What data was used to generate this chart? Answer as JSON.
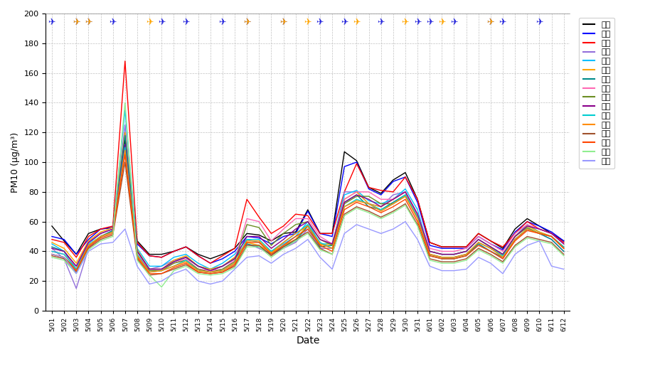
{
  "ylabel": "PM10 (ug/m³)",
  "xlabel": "Date",
  "ylim": [
    0,
    200
  ],
  "yticks": [
    0,
    20,
    40,
    60,
    80,
    100,
    120,
    140,
    160,
    180,
    200
  ],
  "dates": [
    "5/01",
    "5/02",
    "5/03",
    "5/04",
    "5/05",
    "5/06",
    "5/07",
    "5/08",
    "5/09",
    "5/10",
    "5/11",
    "5/12",
    "5/13",
    "5/14",
    "5/15",
    "5/16",
    "5/17",
    "5/18",
    "5/19",
    "5/20",
    "5/21",
    "5/22",
    "5/23",
    "5/24",
    "5/25",
    "5/26",
    "5/27",
    "5/28",
    "5/29",
    "5/30",
    "5/31",
    "6/01",
    "6/02",
    "6/03",
    "6/04",
    "6/05",
    "6/06",
    "6/07",
    "6/08",
    "6/09",
    "6/10",
    "6/11",
    "6/12"
  ],
  "regions": [
    "서울",
    "경기",
    "인천",
    "강원",
    "충남",
    "대전",
    "충북",
    "부산",
    "울산",
    "대구",
    "경북",
    "경남",
    "전남",
    "광주",
    "전북",
    "제주"
  ],
  "colors": [
    "#000000",
    "#0000FF",
    "#FF0000",
    "#9370DB",
    "#00BFFF",
    "#FFA500",
    "#008B8B",
    "#FF69B4",
    "#6B8E23",
    "#8B008B",
    "#00CED1",
    "#FF8C00",
    "#A0522D",
    "#FF4500",
    "#90EE90",
    "#9999FF"
  ],
  "series": {
    "서울": [
      57,
      47,
      38,
      52,
      55,
      56,
      115,
      47,
      38,
      38,
      40,
      43,
      38,
      35,
      38,
      42,
      52,
      51,
      47,
      52,
      53,
      68,
      52,
      52,
      107,
      101,
      83,
      79,
      88,
      93,
      75,
      46,
      43,
      43,
      43,
      52,
      47,
      42,
      55,
      62,
      57,
      52,
      47
    ],
    "경기": [
      50,
      48,
      38,
      48,
      55,
      56,
      112,
      45,
      37,
      36,
      40,
      43,
      37,
      32,
      35,
      40,
      50,
      49,
      45,
      50,
      52,
      67,
      52,
      50,
      97,
      100,
      82,
      78,
      87,
      90,
      73,
      44,
      42,
      42,
      42,
      50,
      45,
      41,
      53,
      60,
      57,
      53,
      47
    ],
    "인천": [
      48,
      46,
      36,
      50,
      55,
      57,
      168,
      46,
      37,
      36,
      40,
      43,
      37,
      32,
      37,
      42,
      75,
      63,
      52,
      57,
      65,
      64,
      52,
      52,
      80,
      99,
      83,
      81,
      80,
      90,
      75,
      46,
      43,
      43,
      43,
      52,
      47,
      43,
      52,
      60,
      55,
      52,
      46
    ],
    "강원": [
      42,
      35,
      15,
      42,
      50,
      54,
      125,
      40,
      28,
      30,
      34,
      36,
      30,
      28,
      30,
      36,
      45,
      42,
      38,
      42,
      46,
      55,
      42,
      42,
      80,
      80,
      72,
      70,
      78,
      80,
      65,
      38,
      36,
      36,
      38,
      45,
      40,
      35,
      48,
      55,
      52,
      48,
      40
    ],
    "충남": [
      45,
      40,
      30,
      45,
      52,
      55,
      135,
      42,
      30,
      30,
      36,
      38,
      32,
      28,
      32,
      38,
      48,
      46,
      40,
      45,
      50,
      60,
      45,
      45,
      78,
      81,
      74,
      72,
      75,
      82,
      68,
      40,
      38,
      38,
      40,
      48,
      43,
      38,
      50,
      58,
      53,
      50,
      42
    ],
    "대전": [
      46,
      42,
      32,
      47,
      53,
      56,
      120,
      41,
      28,
      28,
      34,
      37,
      30,
      28,
      30,
      36,
      46,
      44,
      39,
      44,
      48,
      58,
      44,
      45,
      75,
      80,
      72,
      70,
      75,
      80,
      65,
      38,
      36,
      36,
      38,
      46,
      42,
      37,
      50,
      57,
      53,
      50,
      42
    ],
    "충북": [
      43,
      40,
      28,
      44,
      50,
      54,
      118,
      40,
      28,
      28,
      33,
      36,
      30,
      27,
      30,
      35,
      45,
      43,
      38,
      43,
      47,
      57,
      43,
      44,
      73,
      78,
      70,
      68,
      73,
      78,
      63,
      37,
      35,
      35,
      37,
      45,
      40,
      36,
      48,
      55,
      52,
      48,
      40
    ],
    "부산": [
      40,
      38,
      30,
      46,
      52,
      55,
      110,
      38,
      28,
      28,
      32,
      35,
      28,
      27,
      28,
      34,
      62,
      60,
      47,
      55,
      62,
      62,
      50,
      45,
      75,
      80,
      80,
      75,
      75,
      80,
      65,
      42,
      40,
      40,
      42,
      50,
      45,
      40,
      52,
      58,
      55,
      52,
      45
    ],
    "울산": [
      38,
      36,
      28,
      44,
      50,
      53,
      108,
      37,
      27,
      27,
      32,
      34,
      28,
      26,
      28,
      33,
      58,
      56,
      44,
      52,
      58,
      60,
      48,
      44,
      72,
      77,
      77,
      72,
      72,
      77,
      63,
      40,
      38,
      38,
      40,
      48,
      43,
      38,
      50,
      56,
      52,
      50,
      43
    ],
    "대구": [
      42,
      40,
      30,
      46,
      52,
      55,
      112,
      40,
      28,
      28,
      33,
      36,
      30,
      27,
      30,
      35,
      50,
      50,
      42,
      48,
      55,
      60,
      48,
      45,
      73,
      78,
      75,
      70,
      75,
      80,
      65,
      40,
      38,
      38,
      40,
      48,
      43,
      38,
      50,
      57,
      55,
      52,
      45
    ],
    "경북": [
      40,
      38,
      28,
      44,
      50,
      53,
      110,
      38,
      26,
      27,
      30,
      34,
      27,
      26,
      27,
      32,
      48,
      48,
      40,
      46,
      52,
      58,
      46,
      42,
      70,
      75,
      72,
      68,
      72,
      78,
      63,
      38,
      36,
      36,
      38,
      46,
      42,
      37,
      48,
      55,
      52,
      50,
      43
    ],
    "경남": [
      38,
      36,
      27,
      44,
      50,
      53,
      108,
      37,
      26,
      27,
      30,
      33,
      27,
      26,
      27,
      32,
      47,
      47,
      39,
      46,
      52,
      57,
      45,
      42,
      70,
      74,
      72,
      67,
      72,
      77,
      62,
      38,
      36,
      36,
      38,
      46,
      42,
      36,
      48,
      55,
      52,
      50,
      42
    ],
    "전남": [
      37,
      35,
      26,
      42,
      48,
      51,
      100,
      35,
      24,
      25,
      28,
      31,
      26,
      25,
      26,
      30,
      44,
      44,
      37,
      43,
      48,
      53,
      42,
      38,
      65,
      70,
      67,
      63,
      67,
      72,
      58,
      35,
      33,
      33,
      35,
      42,
      38,
      33,
      44,
      50,
      48,
      46,
      38
    ],
    "광주": [
      38,
      36,
      27,
      43,
      49,
      52,
      105,
      36,
      25,
      25,
      29,
      32,
      26,
      25,
      26,
      31,
      46,
      46,
      38,
      44,
      50,
      55,
      44,
      40,
      68,
      73,
      70,
      66,
      70,
      75,
      60,
      37,
      35,
      35,
      37,
      44,
      40,
      35,
      47,
      54,
      52,
      50,
      42
    ],
    "전북": [
      36,
      34,
      25,
      41,
      47,
      50,
      140,
      34,
      24,
      16,
      27,
      30,
      25,
      24,
      25,
      29,
      43,
      43,
      36,
      42,
      47,
      52,
      41,
      38,
      64,
      69,
      66,
      62,
      66,
      71,
      57,
      34,
      32,
      32,
      34,
      41,
      37,
      32,
      43,
      49,
      47,
      45,
      37
    ],
    "제주": [
      38,
      36,
      25,
      40,
      45,
      46,
      55,
      30,
      18,
      20,
      25,
      28,
      20,
      18,
      20,
      28,
      36,
      37,
      32,
      38,
      42,
      48,
      36,
      28,
      52,
      58,
      55,
      52,
      55,
      60,
      48,
      30,
      27,
      27,
      28,
      36,
      32,
      25,
      38,
      44,
      47,
      30,
      28
    ]
  },
  "blue_plane_x": [
    0,
    2,
    3,
    5,
    9,
    11,
    14,
    16,
    19,
    22,
    24,
    27,
    30,
    31,
    33,
    36,
    37,
    40
  ],
  "orange_plane_x": [
    2,
    3,
    8,
    16,
    19,
    21,
    25,
    29,
    32,
    36
  ]
}
